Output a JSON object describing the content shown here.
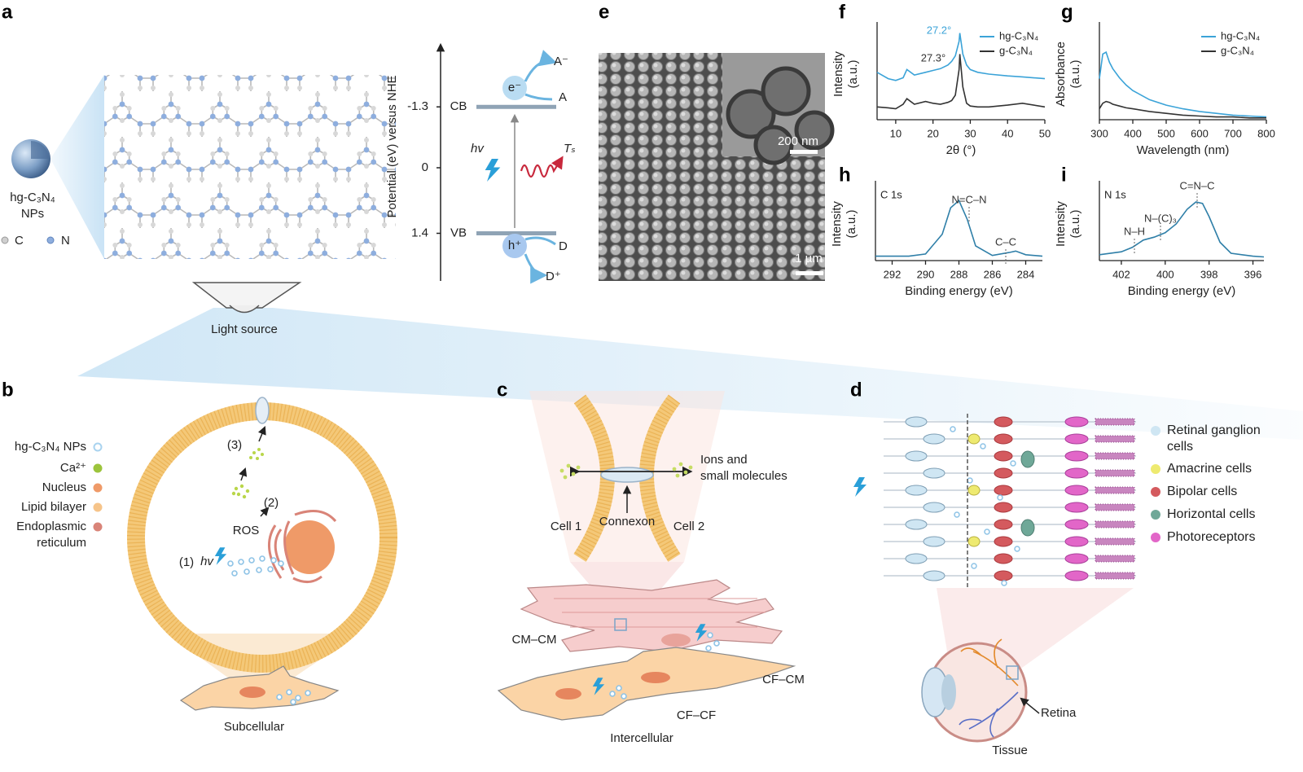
{
  "panel_labels": [
    "a",
    "b",
    "c",
    "d",
    "e",
    "f",
    "g",
    "h",
    "i"
  ],
  "panel_a": {
    "particle_label": [
      "hg-C₃N₄",
      "NPs"
    ],
    "atom_legend": [
      "C",
      "N"
    ],
    "light_source": "Light source",
    "energy_axis_label": "Potential (eV) versus NHE",
    "energy_ticks": [
      -1.3,
      0,
      1.4
    ],
    "band_labels": [
      "CB",
      "VB"
    ],
    "species": [
      "e⁻",
      "A⁻",
      "A",
      "h⁺",
      "D",
      "D⁺"
    ],
    "hv": "hv",
    "ts": "Tₛ"
  },
  "panel_e": {
    "inset_scale": "200 nm",
    "main_scale": "1 µm"
  },
  "panel_b": {
    "legend": [
      {
        "label": [
          "hg-C₃N₄ NPs"
        ],
        "color": "#a9d3ef"
      },
      {
        "label": [
          "Ca²⁺"
        ],
        "color": "#9cc43c"
      },
      {
        "label": [
          "Nucleus"
        ],
        "color": "#ef9a68"
      },
      {
        "label": [
          "Lipid bilayer"
        ],
        "color": "#f6c48a"
      },
      {
        "label": [
          "Endoplasmic",
          "reticulum"
        ],
        "color": "#d98478"
      }
    ],
    "steps": [
      "(3)",
      "(2)",
      "(1)"
    ],
    "hv": "hv",
    "ros": "ROS",
    "caption": "Subcellular"
  },
  "panel_c": {
    "ions": [
      "Ions and",
      "small molecules"
    ],
    "cell1": "Cell 1",
    "connexon": "Connexon",
    "cell2": "Cell 2",
    "cm_cm": "CM–CM",
    "cf_cm": "CF–CM",
    "cf_cf": "CF–CF",
    "caption": "Intercellular"
  },
  "panel_d": {
    "legend": [
      {
        "label": [
          "Retinal ganglion",
          "cells"
        ],
        "color": "#cfe6f3"
      },
      {
        "label": [
          "Amacrine cells"
        ],
        "color": "#eeea70"
      },
      {
        "label": [
          "Bipolar cells"
        ],
        "color": "#d45a5e"
      },
      {
        "label": [
          "Horizontal cells"
        ],
        "color": "#6fa898"
      },
      {
        "label": [
          "Photoreceptors"
        ],
        "color": "#e266c8"
      }
    ],
    "retina": "Retina",
    "caption": "Tissue"
  },
  "chart_data": [
    {
      "type": "line",
      "xlabel": "2θ (°)",
      "ylabel": "Intensity (a.u.)",
      "x": [
        5,
        8,
        10,
        12,
        13,
        15,
        18,
        20,
        22,
        24,
        25,
        26,
        27,
        27.2,
        28,
        29,
        30,
        32,
        35,
        40,
        44,
        50
      ],
      "xlim": [
        5,
        50
      ],
      "xticks": [
        10,
        20,
        30,
        40,
        50
      ],
      "ylim": [
        0,
        1
      ],
      "series": [
        {
          "name": "hg-C₃N₄",
          "color": "#3ba3d8",
          "values": [
            0.52,
            0.45,
            0.43,
            0.46,
            0.55,
            0.49,
            0.52,
            0.54,
            0.56,
            0.6,
            0.64,
            0.7,
            0.86,
            0.95,
            0.72,
            0.6,
            0.55,
            0.52,
            0.5,
            0.48,
            0.47,
            0.45
          ]
        },
        {
          "name": "g-C₃N₄",
          "color": "#333333",
          "values": [
            0.14,
            0.13,
            0.12,
            0.17,
            0.23,
            0.17,
            0.2,
            0.18,
            0.17,
            0.19,
            0.21,
            0.27,
            0.55,
            0.72,
            0.36,
            0.18,
            0.15,
            0.14,
            0.14,
            0.16,
            0.18,
            0.14
          ]
        }
      ],
      "annotations": [
        "27.2°",
        "27.3°"
      ]
    },
    {
      "type": "line",
      "xlabel": "Wavelength (nm)",
      "ylabel": "Absorbance (a.u.)",
      "x": [
        300,
        310,
        320,
        330,
        340,
        360,
        380,
        400,
        450,
        500,
        550,
        600,
        650,
        700,
        750,
        800
      ],
      "xlim": [
        300,
        800
      ],
      "xticks": [
        300,
        400,
        500,
        600,
        700,
        800
      ],
      "ylim": [
        0,
        1
      ],
      "series": [
        {
          "name": "hg-C₃N₄",
          "color": "#3ba3d8",
          "values": [
            0.45,
            0.72,
            0.74,
            0.63,
            0.56,
            0.46,
            0.38,
            0.32,
            0.22,
            0.16,
            0.12,
            0.09,
            0.07,
            0.05,
            0.04,
            0.03
          ]
        },
        {
          "name": "g-C₃N₄",
          "color": "#333333",
          "values": [
            0.12,
            0.18,
            0.2,
            0.19,
            0.17,
            0.15,
            0.13,
            0.12,
            0.09,
            0.07,
            0.05,
            0.04,
            0.03,
            0.03,
            0.02,
            0.02
          ]
        }
      ],
      "annotations": []
    },
    {
      "type": "line",
      "xlabel": "Binding energy (eV)",
      "ylabel": "Intensity (a.u.)",
      "spectrum_label": "C 1s",
      "x": [
        293,
        291,
        290,
        289,
        288.5,
        288,
        287.5,
        287,
        286,
        285,
        284.6,
        284,
        283
      ],
      "xlim": [
        293,
        283
      ],
      "xticks": [
        292,
        290,
        288,
        286,
        284
      ],
      "ylim": [
        0,
        1
      ],
      "values": [
        0.06,
        0.06,
        0.09,
        0.36,
        0.72,
        0.82,
        0.56,
        0.2,
        0.07,
        0.11,
        0.13,
        0.08,
        0.06
      ],
      "color": "#2f7fa8",
      "annotations": [
        "N=C–N",
        "C–C"
      ]
    },
    {
      "type": "line",
      "xlabel": "Binding energy (eV)",
      "ylabel": "Intensity (a.u.)",
      "spectrum_label": "N 1s",
      "x": [
        403,
        402,
        401.5,
        401,
        400.5,
        400,
        399.5,
        399,
        398.6,
        398.3,
        398,
        397.5,
        397,
        396,
        395.5
      ],
      "xlim": [
        403,
        395.5
      ],
      "xticks": [
        402,
        400,
        398,
        396
      ],
      "ylim": [
        0,
        1
      ],
      "values": [
        0.08,
        0.12,
        0.18,
        0.28,
        0.32,
        0.38,
        0.5,
        0.7,
        0.8,
        0.78,
        0.6,
        0.25,
        0.1,
        0.06,
        0.05
      ],
      "color": "#2f7fa8",
      "annotations": [
        "N–H",
        "N–(C)₃",
        "C=N–C"
      ]
    }
  ]
}
